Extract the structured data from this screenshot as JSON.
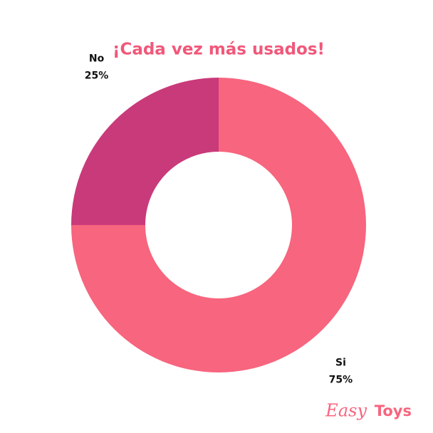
{
  "chart_data": {
    "type": "donut",
    "title": "¡Cada vez más usados!",
    "categories": [
      "Si",
      "No"
    ],
    "values": [
      75,
      25
    ],
    "value_labels": [
      "75%",
      "25%"
    ],
    "colors": [
      "#f7657e",
      "#c93a7a"
    ]
  },
  "logo": [
    "Easy",
    "Toys"
  ]
}
